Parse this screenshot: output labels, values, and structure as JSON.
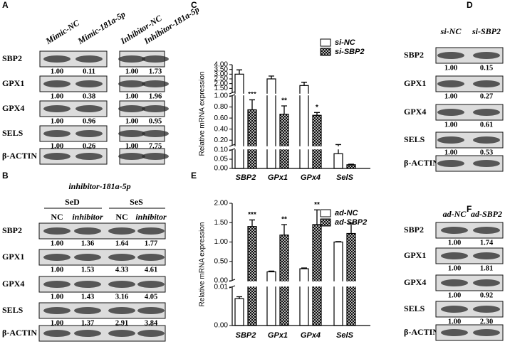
{
  "panels": {
    "A": {
      "label": "A",
      "headers": [
        "Mimic-NC",
        "Mimic-181a-5p",
        "Inhibitor-NC",
        "Inhibitor-181a-5p"
      ],
      "rows": [
        {
          "name": "SBP2",
          "values": [
            "1.00",
            "0.11",
            "1.00",
            "1.73"
          ]
        },
        {
          "name": "GPX1",
          "values": [
            "1.00",
            "0.38",
            "1.00",
            "1.96"
          ]
        },
        {
          "name": "GPX4",
          "values": [
            "1.00",
            "0.96",
            "1.00",
            "0.95"
          ]
        },
        {
          "name": "SELS",
          "values": [
            "1.00",
            "0.26",
            "1.00",
            "7.75"
          ]
        }
      ],
      "control": "β-ACTIN"
    },
    "B": {
      "label": "B",
      "title": "inhibitor-181a-5p",
      "groups": [
        {
          "name": "SeD",
          "columns": [
            "NC",
            "inhibitor"
          ]
        },
        {
          "name": "SeS",
          "columns": [
            "NC",
            "inhibitor"
          ]
        }
      ],
      "rows": [
        {
          "name": "SBP2",
          "values": [
            "1.00",
            "1.36",
            "1.64",
            "1.77"
          ]
        },
        {
          "name": "GPX1",
          "values": [
            "1.00",
            "1.53",
            "4.33",
            "4.61"
          ]
        },
        {
          "name": "GPX4",
          "values": [
            "1.00",
            "1.43",
            "3.16",
            "4.05"
          ]
        },
        {
          "name": "SELS",
          "values": [
            "1.00",
            "1.37",
            "2.91",
            "3.84"
          ]
        }
      ],
      "control": "β-ACTIN"
    },
    "D": {
      "label": "D",
      "headers": [
        "si-NC",
        "si-SBP2"
      ],
      "rows": [
        {
          "name": "SBP2",
          "values": [
            "1.00",
            "0.15"
          ]
        },
        {
          "name": "GPX1",
          "values": [
            "1.00",
            "0.27"
          ]
        },
        {
          "name": "GPX4",
          "values": [
            "1.00",
            "0.61"
          ]
        },
        {
          "name": "SELS",
          "values": [
            "1.00",
            "0.53"
          ]
        }
      ],
      "control": "β-ACTIN"
    },
    "F": {
      "label": "F",
      "headers": [
        "ad-NC",
        "ad-SBP2"
      ],
      "rows": [
        {
          "name": "SBP2",
          "values": [
            "1.00",
            "1.74"
          ]
        },
        {
          "name": "GPX1",
          "values": [
            "1.00",
            "1.81"
          ]
        },
        {
          "name": "GPX4",
          "values": [
            "1.00",
            "0.92"
          ]
        },
        {
          "name": "SELS",
          "values": [
            "1.00",
            "2.30"
          ]
        }
      ],
      "control": "β-ACTIN"
    }
  },
  "chart_data": [
    {
      "type": "bar",
      "panel_label": "C",
      "ylabel": "Relative mRNA expression",
      "categories": [
        "SBP2",
        "GPx1",
        "GPx4",
        "SelS"
      ],
      "legend": "upper right",
      "series": [
        {
          "name": "si-NC",
          "color": "#ffffff",
          "pattern": "none",
          "values": [
            3.0,
            2.5,
            1.8,
            0.08
          ],
          "errors": [
            0.45,
            0.3,
            0.35,
            0.04
          ],
          "annotations": [
            null,
            null,
            null,
            null
          ]
        },
        {
          "name": "si-SBP2",
          "color": "#000000",
          "pattern": "crosshatch",
          "values": [
            0.75,
            0.67,
            0.65,
            0.02
          ],
          "errors": [
            0.18,
            0.15,
            0.05,
            0.003
          ],
          "annotations": [
            "***",
            "**",
            "*",
            null
          ]
        }
      ],
      "y_segments": [
        {
          "ylim": [
            0,
            0.1
          ],
          "yticks": [
            {
              "value": 0,
              "label": "0.00"
            },
            {
              "value": 0.05,
              "label": "0.05"
            },
            {
              "value": 0.1,
              "label": "0.10"
            }
          ]
        },
        {
          "ylim": [
            0.1,
            1
          ],
          "yticks": [
            {
              "value": 0.2,
              "label": "0.20"
            },
            {
              "value": 0.4,
              "label": "0.40"
            },
            {
              "value": 0.6,
              "label": "0.60"
            },
            {
              "value": 0.8,
              "label": "0.80"
            },
            {
              "value": 1,
              "label": "1.00"
            }
          ]
        },
        {
          "ylim": [
            1,
            4
          ],
          "yticks": [
            {
              "value": 1.5,
              "label": "1.50"
            },
            {
              "value": 2,
              "label": "2.00"
            },
            {
              "value": 2.5,
              "label": "2.50"
            },
            {
              "value": 3,
              "label": "3.00"
            },
            {
              "value": 3.5,
              "label": "3.50"
            },
            {
              "value": 4,
              "label": "4.00"
            }
          ]
        }
      ]
    },
    {
      "type": "bar",
      "panel_label": "E",
      "ylabel": "Relative mRNA expression",
      "categories": [
        "SBP2",
        "GPx1",
        "GPx4",
        "SelS"
      ],
      "legend": "upper right",
      "series": [
        {
          "name": "ad-NC",
          "color": "#ffffff",
          "pattern": "none",
          "values": [
            0.007,
            0.23,
            0.31,
            1.0
          ],
          "errors": [
            0.0005,
            0.02,
            0.02,
            0.01
          ],
          "annotations": [
            null,
            null,
            null,
            null
          ]
        },
        {
          "name": "ad-SBP2",
          "color": "#000000",
          "pattern": "crosshatch",
          "values": [
            1.4,
            1.18,
            1.45,
            1.22
          ],
          "errors": [
            0.17,
            0.27,
            0.38,
            0.27
          ],
          "annotations": [
            "***",
            "**",
            "**",
            null
          ]
        }
      ],
      "y_segments": [
        {
          "ylim": [
            0,
            0.01
          ],
          "yticks": [
            {
              "value": 0,
              "label": "0.00"
            },
            {
              "value": 0.01,
              "label": "0.01"
            }
          ]
        },
        {
          "ylim": [
            0,
            2
          ],
          "yticks": [
            {
              "value": 0,
              "label": "0.00"
            },
            {
              "value": 0.5,
              "label": "0.50"
            },
            {
              "value": 1,
              "label": "1.00"
            },
            {
              "value": 1.5,
              "label": "1.50"
            },
            {
              "value": 2,
              "label": "2.00"
            }
          ]
        }
      ]
    }
  ]
}
